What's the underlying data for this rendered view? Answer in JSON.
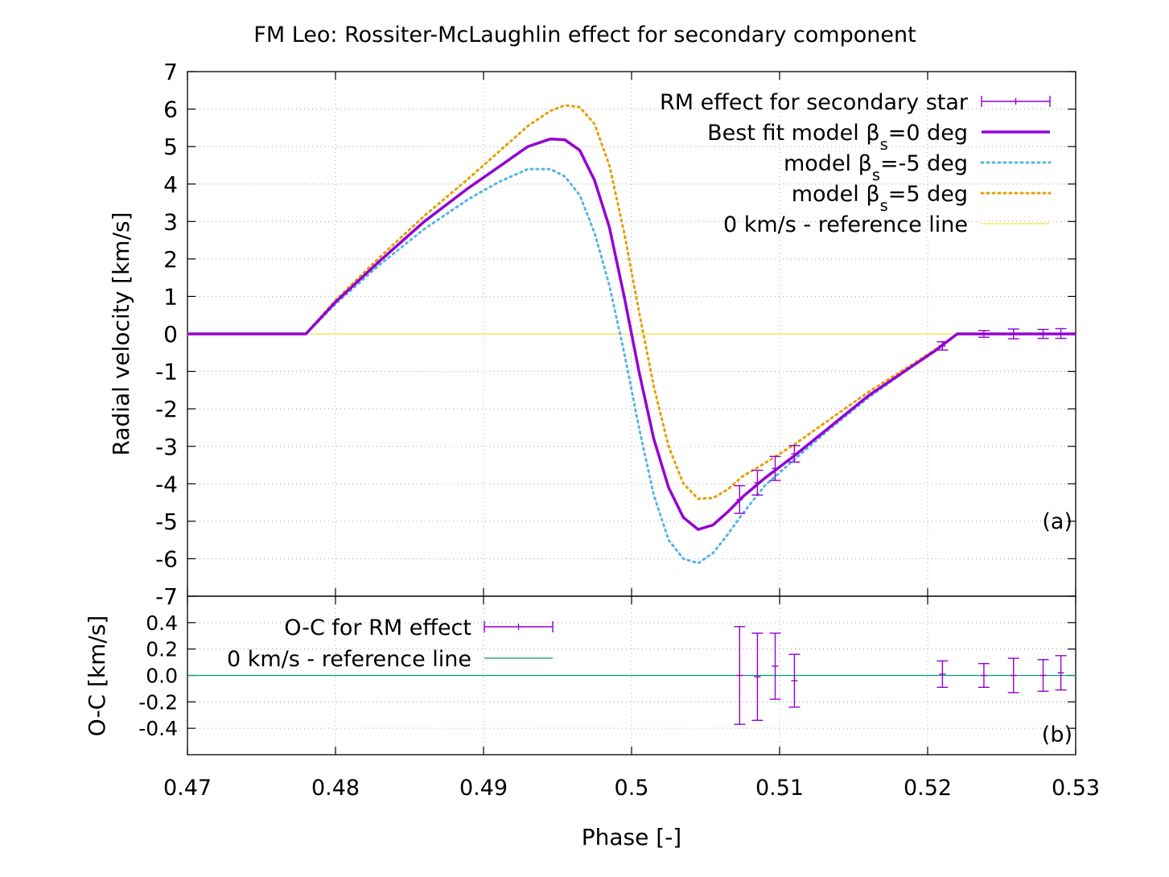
{
  "title": "FM Leo: Rossiter-McLaughlin effect for secondary component",
  "xlabel": "Phase [-]",
  "colors": {
    "obs": "#9400d3",
    "model0": "#9400d3",
    "model_m5": "#56b4e9",
    "model_p5": "#e69f00",
    "ref_top": "#f0e442",
    "ref_bottom": "#009e73",
    "grid": "#a0a0a0"
  },
  "chart_data": [
    {
      "panel": "a",
      "panel_label": "(a)",
      "type": "line",
      "ylabel": "Radial velocity [km/s]",
      "xlim": [
        0.47,
        0.53
      ],
      "ylim": [
        -7,
        7
      ],
      "xticks": [
        0.47,
        0.48,
        0.49,
        0.5,
        0.51,
        0.52,
        0.53
      ],
      "yticks": [
        -7,
        -6,
        -5,
        -4,
        -3,
        -2,
        -1,
        0,
        1,
        2,
        3,
        4,
        5,
        6,
        7
      ],
      "grid": true,
      "legend_position": "top-right",
      "series": [
        {
          "legend_text": "RM effect for secondary star",
          "kind": "errorbar",
          "color_key": "obs",
          "x": [
            0.5073,
            0.5085,
            0.5097,
            0.511,
            0.521,
            0.5238,
            0.5258,
            0.5278,
            0.529
          ],
          "y": [
            -4.42,
            -3.97,
            -3.59,
            -3.2,
            -0.32,
            0.0,
            0.0,
            0.0,
            0.01
          ],
          "err": [
            0.37,
            0.33,
            0.32,
            0.22,
            0.11,
            0.09,
            0.13,
            0.12,
            0.13
          ]
        },
        {
          "legend_text": "Best fit model β",
          "legend_sub": "s",
          "legend_tail": "=0 deg",
          "kind": "line",
          "style": "solid",
          "color_key": "model0",
          "x": [
            0.47,
            0.478,
            0.48,
            0.483,
            0.486,
            0.489,
            0.491,
            0.493,
            0.4945,
            0.4955,
            0.4965,
            0.4975,
            0.4985,
            0.4995,
            0.5005,
            0.5015,
            0.5025,
            0.5035,
            0.5045,
            0.5055,
            0.5065,
            0.5075,
            0.509,
            0.511,
            0.5135,
            0.516,
            0.519,
            0.5205,
            0.522,
            0.53
          ],
          "y": [
            0,
            0,
            0.85,
            1.95,
            3.0,
            3.9,
            4.45,
            5.0,
            5.2,
            5.18,
            4.9,
            4.1,
            2.85,
            1.0,
            -1.0,
            -2.8,
            -4.1,
            -4.9,
            -5.22,
            -5.1,
            -4.75,
            -4.35,
            -3.85,
            -3.25,
            -2.45,
            -1.65,
            -0.85,
            -0.45,
            0,
            0
          ]
        },
        {
          "legend_text": "model β",
          "legend_sub": "s",
          "legend_tail": "=-5 deg",
          "kind": "line",
          "style": "dotted",
          "color_key": "model_m5",
          "x": [
            0.47,
            0.478,
            0.48,
            0.483,
            0.486,
            0.489,
            0.491,
            0.493,
            0.4945,
            0.4955,
            0.4965,
            0.4975,
            0.4985,
            0.4995,
            0.5005,
            0.5015,
            0.5025,
            0.5035,
            0.5045,
            0.5055,
            0.5065,
            0.5075,
            0.509,
            0.511,
            0.5135,
            0.516,
            0.519,
            0.5205,
            0.522,
            0.53
          ],
          "y": [
            0,
            0,
            0.8,
            1.85,
            2.8,
            3.6,
            4.05,
            4.4,
            4.4,
            4.2,
            3.7,
            2.7,
            1.3,
            -0.5,
            -2.5,
            -4.3,
            -5.5,
            -6.0,
            -6.12,
            -5.85,
            -5.35,
            -4.8,
            -4.05,
            -3.35,
            -2.5,
            -1.7,
            -0.85,
            -0.45,
            0,
            0
          ]
        },
        {
          "legend_text": "model β",
          "legend_sub": "s",
          "legend_tail": "=5 deg",
          "kind": "line",
          "style": "dotted",
          "color_key": "model_p5",
          "x": [
            0.47,
            0.478,
            0.48,
            0.483,
            0.486,
            0.489,
            0.491,
            0.493,
            0.4945,
            0.4955,
            0.4965,
            0.4975,
            0.4985,
            0.4995,
            0.5005,
            0.5015,
            0.5025,
            0.5035,
            0.5045,
            0.5055,
            0.5065,
            0.5075,
            0.509,
            0.511,
            0.5135,
            0.516,
            0.519,
            0.5205,
            0.522,
            0.53
          ],
          "y": [
            0,
            0,
            0.9,
            2.05,
            3.15,
            4.15,
            4.85,
            5.55,
            5.95,
            6.1,
            6.05,
            5.6,
            4.5,
            2.7,
            0.6,
            -1.4,
            -3.0,
            -4.0,
            -4.4,
            -4.38,
            -4.15,
            -3.8,
            -3.45,
            -2.95,
            -2.25,
            -1.55,
            -0.8,
            -0.42,
            0,
            0
          ]
        },
        {
          "legend_text": "0 km/s - reference line",
          "kind": "hline",
          "color_key": "ref_top",
          "value": 0
        }
      ]
    },
    {
      "panel": "b",
      "panel_label": "(b)",
      "type": "scatter",
      "ylabel": "O-C [km/s]",
      "xlim": [
        0.47,
        0.53
      ],
      "ylim": [
        -0.6,
        0.6
      ],
      "xticks": [
        0.47,
        0.48,
        0.49,
        0.5,
        0.51,
        0.52,
        0.53
      ],
      "yticks": [
        -0.4,
        -0.2,
        0.0,
        0.2,
        0.4
      ],
      "ytick_labels": [
        "-0.4",
        "-0.2",
        "0.0",
        "0.2",
        "0.4"
      ],
      "xtick_labels": [
        "0.47",
        "0.48",
        "0.49",
        "0.5",
        "0.51",
        "0.52",
        "0.53"
      ],
      "grid": true,
      "legend_position": "top-left",
      "series": [
        {
          "legend_text": "O-C for RM effect",
          "kind": "errorbar",
          "color_key": "obs",
          "x": [
            0.5073,
            0.5085,
            0.5097,
            0.511,
            0.521,
            0.5238,
            0.5258,
            0.5278,
            0.529
          ],
          "y": [
            0.0,
            -0.01,
            0.07,
            -0.04,
            0.01,
            0.0,
            0.0,
            0.0,
            0.02
          ],
          "err": [
            0.37,
            0.33,
            0.25,
            0.2,
            0.1,
            0.09,
            0.13,
            0.12,
            0.13
          ]
        },
        {
          "legend_text": "0 km/s - reference line",
          "kind": "hline",
          "color_key": "ref_bottom",
          "value": 0
        }
      ]
    }
  ]
}
